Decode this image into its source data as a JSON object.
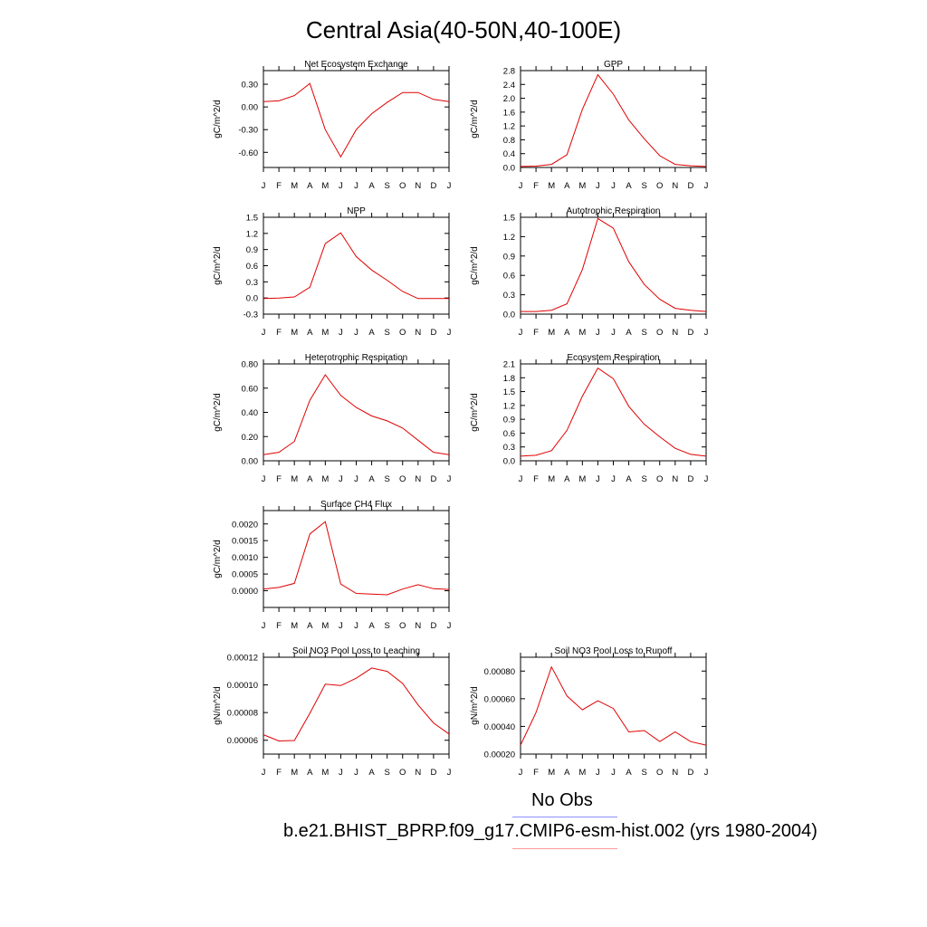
{
  "title": "Central Asia(40-50N,40-100E)",
  "legend": [
    {
      "label": "No Obs",
      "color": "#8f8fff"
    },
    {
      "label": "b.e21.BHIST_BPRP.f09_g17.CMIP6-esm-hist.002 (yrs 1980-2004)",
      "color": "#ff9a9a"
    }
  ],
  "line_color": "#e00000",
  "months": [
    "J",
    "F",
    "M",
    "A",
    "M",
    "J",
    "J",
    "A",
    "S",
    "O",
    "N",
    "D",
    "J"
  ],
  "chart_data": [
    {
      "type": "line",
      "title": "Net Ecosystem Exchange",
      "ylabel": "gC/m^2/d",
      "ylim": [
        -0.8,
        0.48
      ],
      "ticks": [
        -0.6,
        -0.3,
        0.0,
        0.3
      ],
      "tick_labels": [
        "-0.60",
        "-0.30",
        "0.00",
        "0.30"
      ],
      "values": [
        0.07,
        0.08,
        0.15,
        0.31,
        -0.3,
        -0.66,
        -0.3,
        -0.09,
        0.06,
        0.19,
        0.19,
        0.1,
        0.07
      ]
    },
    {
      "type": "line",
      "title": "GPP",
      "ylabel": "gC/m^2/d",
      "ylim": [
        0.0,
        2.8
      ],
      "ticks": [
        0.0,
        0.4,
        0.8,
        1.2,
        1.6,
        2.0,
        2.4,
        2.8
      ],
      "tick_labels": [
        "0.0",
        "0.4",
        "0.8",
        "1.2",
        "1.6",
        "2.0",
        "2.4",
        "2.8"
      ],
      "values": [
        0.03,
        0.04,
        0.09,
        0.37,
        1.68,
        2.68,
        2.12,
        1.37,
        0.83,
        0.34,
        0.09,
        0.05,
        0.03
      ]
    },
    {
      "type": "line",
      "title": "NPP",
      "ylabel": "gC/m^2/d",
      "ylim": [
        -0.3,
        1.5
      ],
      "ticks": [
        -0.3,
        0.0,
        0.3,
        0.6,
        0.9,
        1.2,
        1.5
      ],
      "tick_labels": [
        "-0.3",
        "0.0",
        "0.3",
        "0.6",
        "0.9",
        "1.2",
        "1.5"
      ],
      "values": [
        -0.01,
        0.0,
        0.02,
        0.2,
        1.01,
        1.21,
        0.77,
        0.52,
        0.33,
        0.12,
        -0.01,
        -0.01,
        -0.01
      ]
    },
    {
      "type": "line",
      "title": "Autotrophic Respiration",
      "ylabel": "gC/m^2/d",
      "ylim": [
        0.0,
        1.5
      ],
      "ticks": [
        0.0,
        0.3,
        0.6,
        0.9,
        1.2,
        1.5
      ],
      "tick_labels": [
        "0.0",
        "0.3",
        "0.6",
        "0.9",
        "1.2",
        "1.5"
      ],
      "values": [
        0.04,
        0.04,
        0.06,
        0.16,
        0.69,
        1.48,
        1.33,
        0.81,
        0.46,
        0.23,
        0.09,
        0.06,
        0.04
      ]
    },
    {
      "type": "line",
      "title": "Heterotrophic Respiration",
      "ylabel": "gC/m^2/d",
      "ylim": [
        0.0,
        0.8
      ],
      "ticks": [
        0.0,
        0.2,
        0.4,
        0.6,
        0.8
      ],
      "tick_labels": [
        "0.00",
        "0.20",
        "0.40",
        "0.60",
        "0.80"
      ],
      "values": [
        0.05,
        0.07,
        0.16,
        0.5,
        0.71,
        0.54,
        0.44,
        0.37,
        0.33,
        0.27,
        0.17,
        0.07,
        0.05
      ]
    },
    {
      "type": "line",
      "title": "Ecosystem Respiration",
      "ylabel": "gC/m^2/d",
      "ylim": [
        0.0,
        2.1
      ],
      "ticks": [
        0.0,
        0.3,
        0.6,
        0.9,
        1.2,
        1.5,
        1.8,
        2.1
      ],
      "tick_labels": [
        "0.0",
        "0.3",
        "0.6",
        "0.9",
        "1.2",
        "1.5",
        "1.8",
        "2.1"
      ],
      "values": [
        0.1,
        0.12,
        0.22,
        0.66,
        1.4,
        2.01,
        1.78,
        1.18,
        0.79,
        0.52,
        0.27,
        0.14,
        0.1
      ]
    },
    {
      "type": "line",
      "title": "Surface CH4 Flux",
      "ylabel": "gC/m^2/d",
      "ylim": [
        -0.0005,
        0.0024
      ],
      "ticks": [
        0.0,
        0.0005,
        0.001,
        0.0015,
        0.002
      ],
      "tick_labels": [
        "0.0000",
        "0.0005",
        "0.0010",
        "0.0015",
        "0.0020"
      ],
      "values": [
        5e-05,
        0.0001,
        0.00022,
        0.0017,
        0.00207,
        0.0002,
        -8e-05,
        -0.0001,
        -0.00012,
        5e-05,
        0.00018,
        6e-05,
        4e-05
      ]
    },
    {
      "type": "line",
      "title": "Soil NO3 Pool Loss to Leaching",
      "ylabel": "gN/m^2/d",
      "ylim": [
        5e-05,
        0.00012
      ],
      "ticks": [
        6e-05,
        8e-05,
        0.0001,
        0.00012
      ],
      "tick_labels": [
        "0.00006",
        "0.00008",
        "0.00010",
        "0.00012"
      ],
      "values": [
        6.4e-05,
        5.95e-05,
        5.98e-05,
        7.95e-05,
        0.0001005,
        9.95e-05,
        0.0001048,
        0.0001122,
        0.0001098,
        0.000101,
        8.55e-05,
        7.25e-05,
        6.45e-05
      ]
    },
    {
      "type": "line",
      "title": "Soil NO3 Pool Loss to Runoff",
      "ylabel": "gN/m^2/d",
      "ylim": [
        0.0002,
        0.0009
      ],
      "ticks": [
        0.0002,
        0.0004,
        0.0006,
        0.0008
      ],
      "tick_labels": [
        "0.00020",
        "0.00040",
        "0.00060",
        "0.00080"
      ],
      "values": [
        0.000265,
        0.0005,
        0.00083,
        0.00062,
        0.00052,
        0.000585,
        0.00053,
        0.00036,
        0.00037,
        0.00029,
        0.00036,
        0.00029,
        0.000265
      ]
    }
  ]
}
